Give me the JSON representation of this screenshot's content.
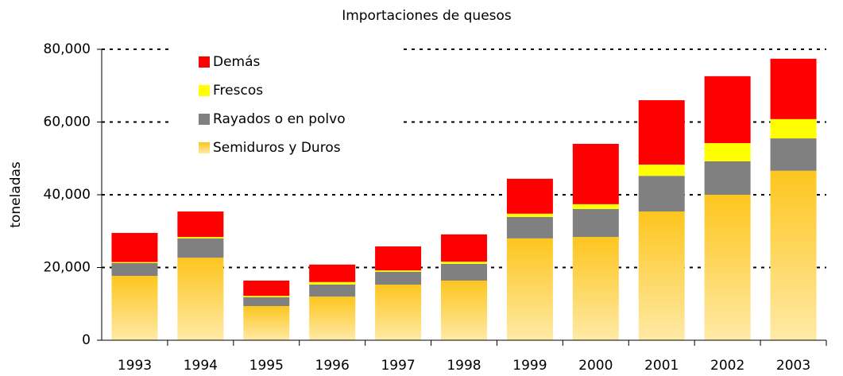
{
  "chart_data": {
    "type": "stacked_bar",
    "title": "Importaciones de quesos",
    "y_label": "toneladas",
    "categories": [
      "1993",
      "1994",
      "1995",
      "1996",
      "1997",
      "1998",
      "1999",
      "2000",
      "2001",
      "2002",
      "2003"
    ],
    "series": [
      {
        "name": "Semiduros y Duros",
        "color": "#fdc51e",
        "values": [
          17700,
          22700,
          9400,
          12000,
          15300,
          16400,
          28000,
          28400,
          35400,
          40000,
          46600
        ]
      },
      {
        "name": "Rayados o en polvo",
        "color": "#808080",
        "values": [
          3500,
          5300,
          2400,
          3300,
          3500,
          4600,
          5900,
          7700,
          9800,
          9200,
          8900
        ]
      },
      {
        "name": "Frescos",
        "color": "#ffff00",
        "values": [
          300,
          400,
          400,
          700,
          400,
          600,
          900,
          1300,
          3100,
          5000,
          5300
        ]
      },
      {
        "name": "Demás",
        "color": "#ff0000",
        "values": [
          8000,
          7000,
          4200,
          4800,
          6600,
          7500,
          9600,
          16600,
          17700,
          18400,
          16600
        ]
      }
    ],
    "ylim": [
      0,
      80000
    ],
    "yticks": [
      0,
      {
        "value": 20000,
        "label": "20,000"
      },
      {
        "value": 40000,
        "label": "40,000"
      },
      {
        "value": 60000,
        "label": "60,000"
      },
      {
        "value": 80000,
        "label": "80,000"
      }
    ],
    "grid": true,
    "legend": "top-left"
  }
}
